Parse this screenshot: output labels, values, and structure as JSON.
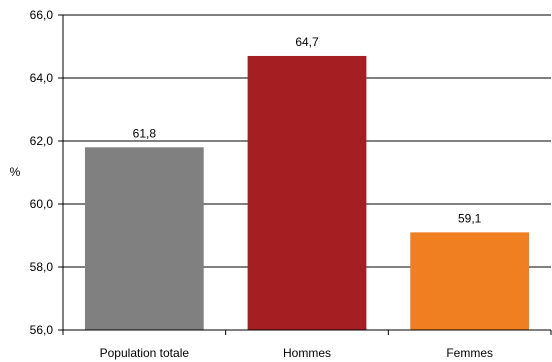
{
  "chart_data": {
    "type": "bar",
    "ylabel": "%",
    "ylim": [
      56,
      66
    ],
    "yticks": [
      "56,0",
      "58,0",
      "60,0",
      "62,0",
      "64,0",
      "66,0"
    ],
    "grid": true,
    "legend": "none",
    "categories": [
      "Population totale",
      "Hommes",
      "Femmes"
    ],
    "values": [
      61.8,
      64.7,
      59.1
    ],
    "value_labels": [
      "61,8",
      "64,7",
      "59,1"
    ],
    "colors": [
      "#808080",
      "#a51e22",
      "#f07f22"
    ]
  }
}
